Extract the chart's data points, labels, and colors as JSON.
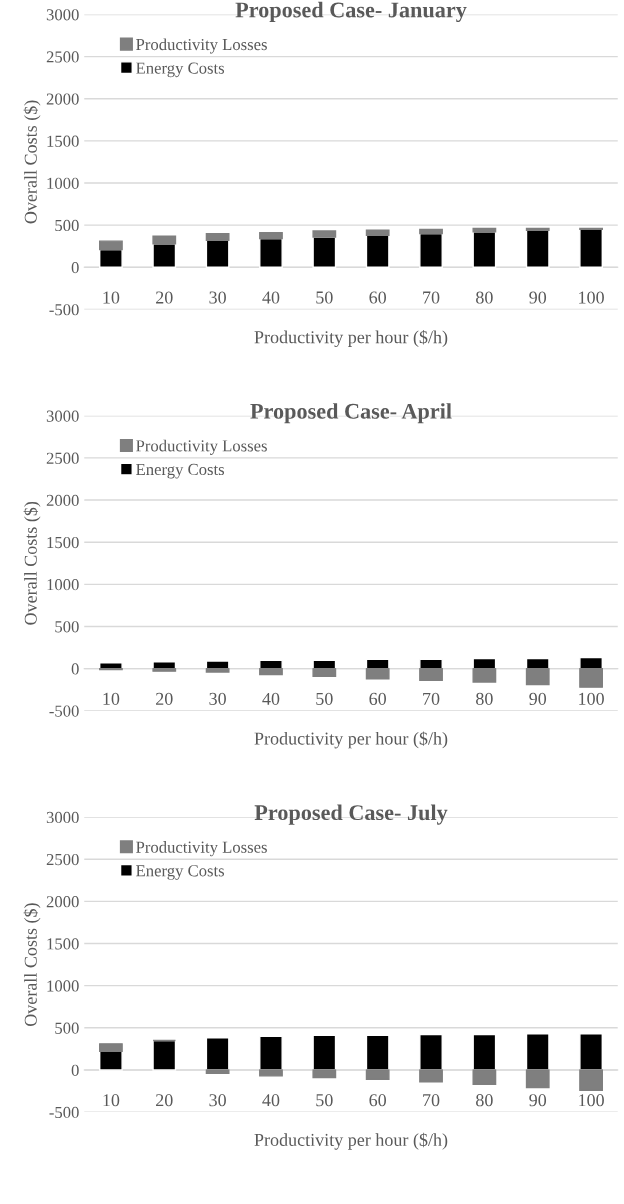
{
  "chart_data": [
    {
      "type": "bar",
      "stacked": true,
      "title": "Proposed Case- January",
      "xlabel": "Productivity per hour ($/h)",
      "ylabel": "Overall Costs ($)",
      "categories": [
        "10",
        "20",
        "30",
        "40",
        "50",
        "60",
        "70",
        "80",
        "90",
        "100"
      ],
      "series": [
        {
          "name": "Energy Costs",
          "color": "#000000",
          "values": [
            210,
            280,
            320,
            340,
            360,
            380,
            400,
            420,
            440,
            450
          ]
        },
        {
          "name": "Productivity Losses",
          "color": "#7f7f7f",
          "values": [
            100,
            90,
            80,
            70,
            70,
            60,
            50,
            40,
            20,
            10
          ]
        }
      ],
      "ylim": [
        -500,
        3000
      ],
      "yticks": [
        -500,
        0,
        500,
        1000,
        1500,
        2000,
        2500,
        3000
      ],
      "grid": "y",
      "legend": "top left"
    },
    {
      "type": "bar",
      "stacked": true,
      "title": "Proposed Case- April",
      "xlabel": "Productivity per hour ($/h)",
      "ylabel": "Overall Costs ($)",
      "categories": [
        "10",
        "20",
        "30",
        "40",
        "50",
        "60",
        "70",
        "80",
        "90",
        "100"
      ],
      "series": [
        {
          "name": "Energy Costs",
          "color": "#000000",
          "values": [
            70,
            80,
            90,
            100,
            100,
            110,
            110,
            120,
            120,
            130
          ]
        },
        {
          "name": "Productivity Losses",
          "color": "#7f7f7f",
          "values": [
            -10,
            -30,
            -40,
            -70,
            -90,
            -120,
            -140,
            -160,
            -190,
            -220
          ]
        }
      ],
      "ylim": [
        -500,
        3000
      ],
      "yticks": [
        -500,
        0,
        500,
        1000,
        1500,
        2000,
        2500,
        3000
      ],
      "grid": "y",
      "legend": "top left"
    },
    {
      "type": "bar",
      "stacked": true,
      "title": "Proposed Case- July",
      "xlabel": "Productivity per hour ($/h)",
      "ylabel": "Overall Costs ($)",
      "categories": [
        "10",
        "20",
        "30",
        "40",
        "50",
        "60",
        "70",
        "80",
        "90",
        "100"
      ],
      "series": [
        {
          "name": "Energy Costs",
          "color": "#000000",
          "values": [
            220,
            350,
            380,
            400,
            410,
            410,
            420,
            420,
            430,
            430
          ]
        },
        {
          "name": "Productivity Losses",
          "color": "#7f7f7f",
          "values": [
            90,
            0,
            -40,
            -70,
            -90,
            -110,
            -140,
            -170,
            -210,
            -240
          ]
        }
      ],
      "ylim": [
        -500,
        3000
      ],
      "yticks": [
        -500,
        0,
        500,
        1000,
        1500,
        2000,
        2500,
        3000
      ],
      "grid": "y",
      "legend": "top left"
    }
  ]
}
